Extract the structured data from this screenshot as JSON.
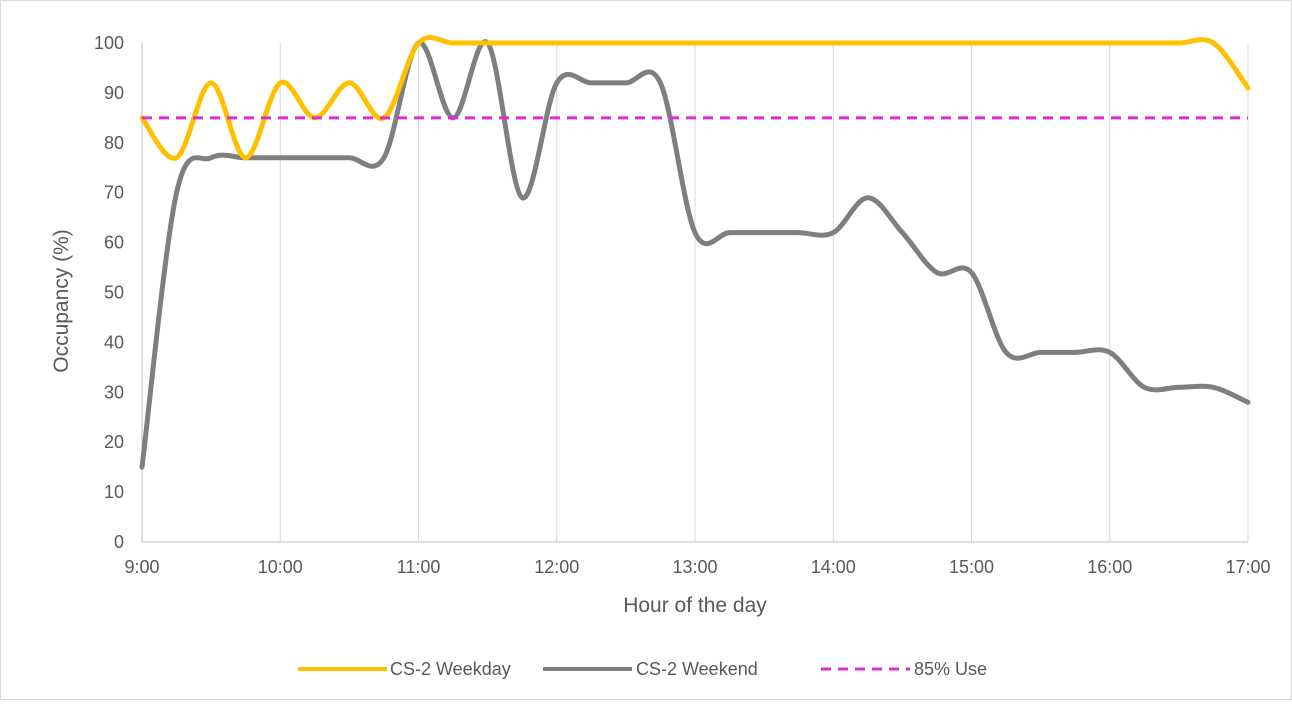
{
  "chart_data": {
    "type": "line",
    "xlabel": "Hour of the day",
    "ylabel": "Occupancy (%)",
    "ylim": [
      0,
      100
    ],
    "y_ticks": [
      0,
      10,
      20,
      30,
      40,
      50,
      60,
      70,
      80,
      90,
      100
    ],
    "x_ticks": [
      "9:00",
      "10:00",
      "11:00",
      "12:00",
      "13:00",
      "14:00",
      "15:00",
      "16:00",
      "17:00"
    ],
    "xlim": [
      "9:00",
      "17:00"
    ],
    "grid": "vertical",
    "legend_position": "bottom",
    "x": [
      "9:00",
      "9:15",
      "9:30",
      "9:45",
      "10:00",
      "10:15",
      "10:30",
      "10:45",
      "11:00",
      "11:15",
      "11:30",
      "11:45",
      "12:00",
      "12:15",
      "12:30",
      "12:45",
      "13:00",
      "13:15",
      "13:30",
      "13:45",
      "14:00",
      "14:15",
      "14:30",
      "14:45",
      "15:00",
      "15:15",
      "15:30",
      "15:45",
      "16:00",
      "16:15",
      "16:30",
      "16:45",
      "17:00"
    ],
    "series": [
      {
        "name": "CS-2 Weekday",
        "color": "#ffc000",
        "style": "solid",
        "values": [
          85,
          77,
          92,
          77,
          92,
          85,
          92,
          85,
          100,
          100,
          100,
          100,
          100,
          100,
          100,
          100,
          100,
          100,
          100,
          100,
          100,
          100,
          100,
          100,
          100,
          100,
          100,
          100,
          100,
          100,
          100,
          100,
          91
        ]
      },
      {
        "name": "CS-2 Weekend",
        "color": "#7f7f7f",
        "style": "solid",
        "values": [
          15,
          70,
          77,
          77,
          77,
          77,
          77,
          77,
          100,
          85,
          100,
          69,
          92,
          92,
          92,
          92,
          62,
          62,
          62,
          62,
          62,
          69,
          62,
          54,
          54,
          38,
          38,
          38,
          38,
          31,
          31,
          31,
          28
        ]
      },
      {
        "name": "85% Use",
        "color": "#e02bd0",
        "style": "dashed",
        "values": [
          85,
          85,
          85,
          85,
          85,
          85,
          85,
          85,
          85,
          85,
          85,
          85,
          85,
          85,
          85,
          85,
          85,
          85,
          85,
          85,
          85,
          85,
          85,
          85,
          85,
          85,
          85,
          85,
          85,
          85,
          85,
          85,
          85
        ]
      }
    ]
  }
}
